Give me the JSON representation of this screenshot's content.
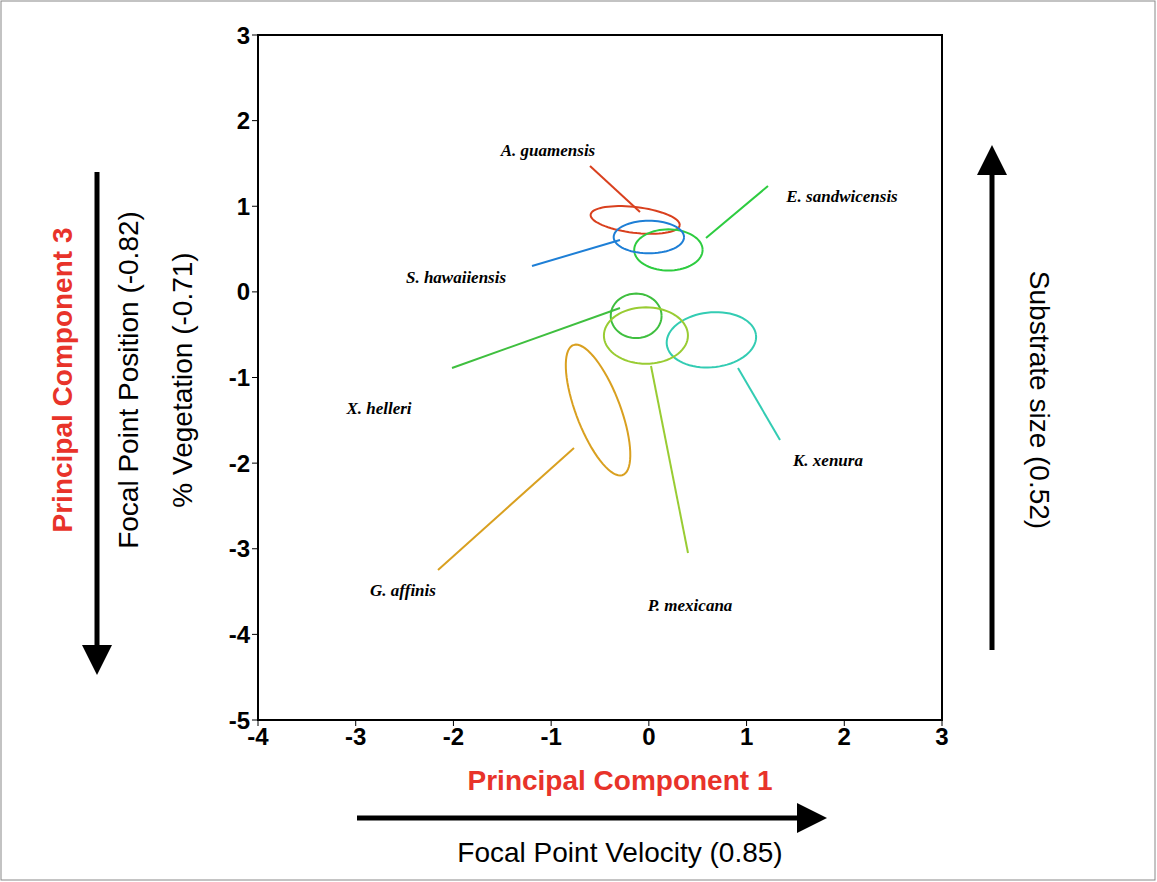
{
  "chart_data": {
    "type": "scatter",
    "marker": "ellipse",
    "x_label": "Principal Component 1",
    "x_sublabel": "Focal Point Velocity (0.85)",
    "y_label": "Principal Component 3",
    "y_sublabels": [
      "Focal Point Position (-0.82)",
      "% Vegetation (-0.71)"
    ],
    "right_label": "Substrate size (0.52)",
    "xlim": [
      -4,
      3
    ],
    "xticks": [
      -4,
      -3,
      -2,
      -1,
      0,
      1,
      2,
      3
    ],
    "ylim": [
      -5,
      3
    ],
    "yticks": [
      -5,
      -4,
      -3,
      -2,
      -1,
      0,
      1,
      2,
      3
    ],
    "grid": false,
    "series": [
      {
        "name": "A. guamensis",
        "color": "#d9401e",
        "center": [
          -0.14,
          0.84
        ],
        "radii": [
          0.46,
          0.15
        ],
        "angle": -8
      },
      {
        "name": "E. sandwicensis",
        "color": "#2ecc40",
        "center": [
          0.2,
          0.49
        ],
        "radii": [
          0.35,
          0.24
        ],
        "angle": 0
      },
      {
        "name": "S. hawaiiensis",
        "color": "#1e7fd6",
        "center": [
          0.0,
          0.64
        ],
        "radii": [
          0.36,
          0.19
        ],
        "angle": 0
      },
      {
        "name": "X. helleri",
        "color": "#3fbf3f",
        "center": [
          -0.13,
          -0.28
        ],
        "radii": [
          0.26,
          0.26
        ],
        "angle": 0
      },
      {
        "name": "K. xenura",
        "color": "#33ccb3",
        "center": [
          0.64,
          -0.56
        ],
        "radii": [
          0.46,
          0.32
        ],
        "angle": 8
      },
      {
        "name": "G. affinis",
        "color": "#d9a020",
        "center": [
          -0.52,
          -1.38
        ],
        "radii": [
          0.8,
          0.23
        ],
        "angle": 108
      },
      {
        "name": "P. mexicana",
        "color": "#99cc33",
        "center": [
          -0.03,
          -0.51
        ],
        "radii": [
          0.43,
          0.33
        ],
        "angle": 0
      }
    ]
  }
}
